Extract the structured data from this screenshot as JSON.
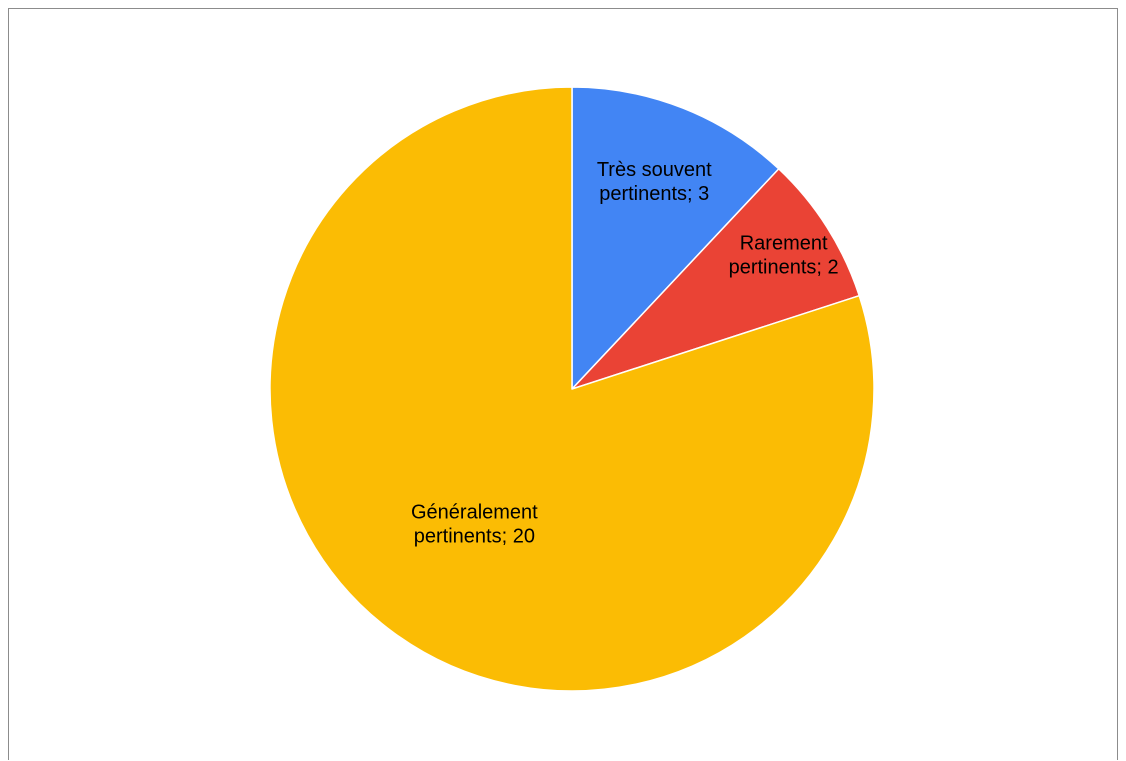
{
  "chart_data": {
    "type": "pie",
    "title": "",
    "start_angle_deg": 0,
    "direction": "clockwise",
    "slices": [
      {
        "label": "Très souvent pertinents",
        "value": 3,
        "color": "#4285F4",
        "label_lines": [
          "Très souvent",
          "pertinents; 3"
        ]
      },
      {
        "label": "Rarement pertinents",
        "value": 2,
        "color": "#EA4335",
        "label_lines": [
          "Rarement",
          "pertinents; 2"
        ]
      },
      {
        "label": "Généralement pertinents",
        "value": 20,
        "color": "#FBBC04",
        "label_lines": [
          "Généralement",
          "pertinents; 20"
        ]
      }
    ],
    "data_labels": "inside",
    "legend": "none"
  }
}
